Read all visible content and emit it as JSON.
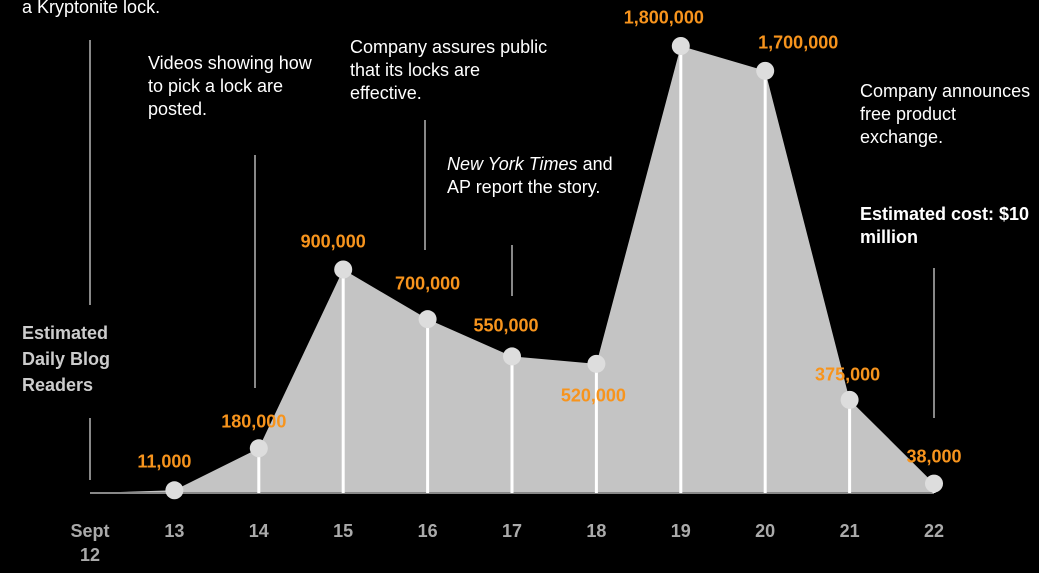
{
  "chart_data": {
    "type": "area",
    "y_label": "Estimated Daily Blog Readers",
    "categories": [
      "Sept 12",
      "13",
      "14",
      "15",
      "16",
      "17",
      "18",
      "19",
      "20",
      "21",
      "22"
    ],
    "values": [
      0,
      11000,
      180000,
      900000,
      700000,
      550000,
      520000,
      1800000,
      1700000,
      375000,
      38000
    ],
    "value_labels": [
      null,
      "11,000",
      "180,000",
      "900,000",
      "700,000",
      "550,000",
      "520,000",
      "1,800,000",
      "1,700,000",
      "375,000",
      "38,000"
    ],
    "ylim": [
      0,
      1800000
    ],
    "color": "#c4c4c4",
    "label_color": "#f7941d",
    "annotations": [
      {
        "text": "a Kryptonite lock."
      },
      {
        "text": "Videos showing how to pick a lock are posted."
      },
      {
        "text": "Company assures public that its locks are effective."
      },
      {
        "italic": "New York Times",
        "text": "and AP report the story."
      },
      {
        "text": "Company announces free product exchange."
      },
      {
        "text": "Estimated cost: $10 million"
      }
    ]
  }
}
